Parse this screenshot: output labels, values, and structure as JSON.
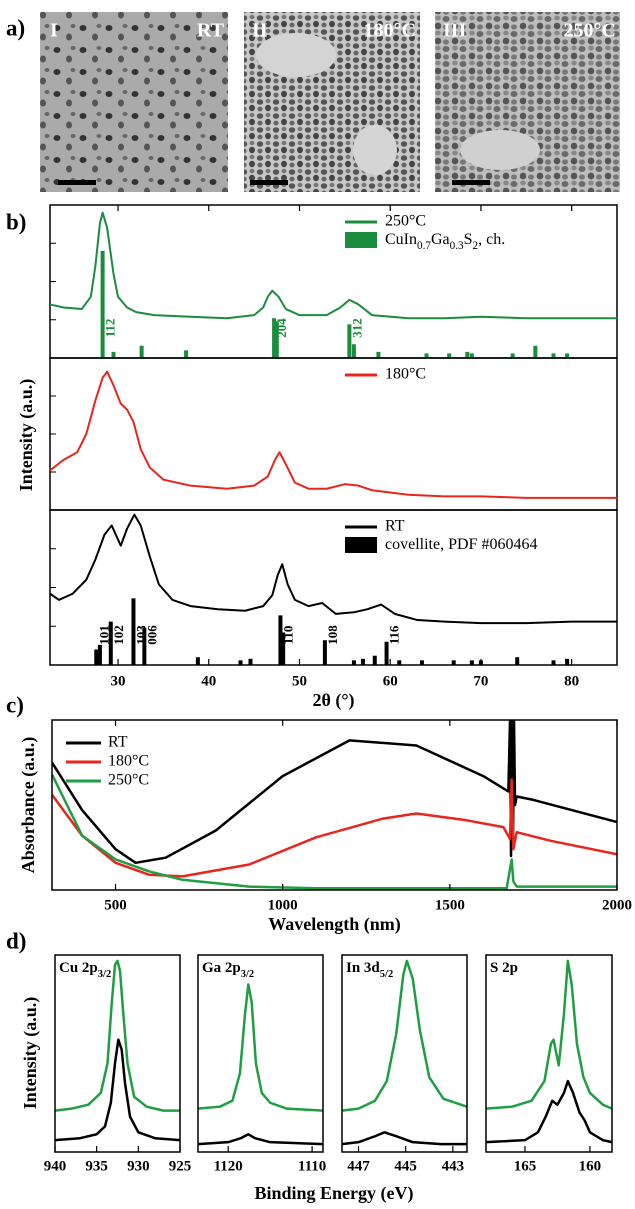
{
  "images": {
    "panel_label": "a)",
    "items": [
      {
        "label": "I",
        "condition": "RT"
      },
      {
        "label": "II",
        "condition": "180°C"
      },
      {
        "label": "III",
        "condition": "250°C"
      }
    ]
  },
  "chart_data": [
    {
      "type": "xrd",
      "panel_label": "b)",
      "xlabel": "2θ (°)",
      "ylabel": "Intensity (a.u.)",
      "xlim": [
        22.5,
        85
      ],
      "xticks": [
        30,
        40,
        50,
        60,
        70,
        80
      ],
      "subplots": [
        {
          "ylim": [
            0,
            100
          ],
          "series": [
            {
              "name": "250°C",
              "color": "#1b8c3e",
              "x": [
                22.5,
                24,
                26,
                27,
                27.5,
                28,
                28.3,
                28.8,
                29.5,
                30,
                31,
                32,
                34,
                38,
                42,
                45,
                46,
                46.5,
                47,
                47.7,
                48.5,
                50,
                53,
                54.5,
                55.5,
                56.5,
                58,
                62,
                66,
                70,
                75,
                80,
                85
              ],
              "values": [
                35,
                33,
                32,
                40,
                60,
                88,
                95,
                85,
                55,
                40,
                33,
                30,
                28,
                27,
                26,
                28,
                33,
                40,
                44,
                40,
                32,
                28,
                28,
                33,
                38,
                35,
                28,
                26,
                26,
                27,
                26,
                26,
                26
              ]
            }
          ],
          "sticks": {
            "name": [
              {
                "text": "CuIn"
              },
              {
                "text": "0.7",
                "sub": true
              },
              {
                "text": "Ga"
              },
              {
                "text": "0.3",
                "sub": true
              },
              {
                "text": "S"
              },
              {
                "text": "2",
                "sub": true
              },
              {
                "text": ", ch."
              }
            ],
            "color": "#1b8c3e",
            "x": [
              28.3,
              29.5,
              32.6,
              37.5,
              47.2,
              47.5,
              55.5,
              56,
              58.7,
              64,
              66.5,
              68.5,
              69,
              73.5,
              76,
              78,
              79.5
            ],
            "values": [
              70,
              4,
              8,
              5,
              26,
              24,
              22,
              9,
              4,
              3,
              3,
              4,
              3,
              3,
              8,
              3,
              3
            ],
            "labels": [
              "112",
              null,
              null,
              null,
              "204",
              null,
              "312",
              null,
              null,
              null,
              null,
              null,
              null,
              null,
              null,
              null,
              null
            ]
          }
        },
        {
          "ylim": [
            0,
            100
          ],
          "series": [
            {
              "name": "180°C",
              "color": "#e8251f",
              "x": [
                22.5,
                24,
                25.5,
                26.5,
                27.5,
                28.3,
                28.8,
                29.5,
                30.3,
                31,
                31.7,
                32.5,
                33.5,
                35,
                38,
                42,
                45,
                46.5,
                47.3,
                47.8,
                48.5,
                49.5,
                51,
                53,
                55,
                56.5,
                58,
                62,
                66,
                70,
                75,
                80,
                85
              ],
              "values": [
                26,
                33,
                38,
                50,
                72,
                87,
                91,
                82,
                70,
                66,
                58,
                40,
                28,
                20,
                16,
                14,
                16,
                22,
                33,
                38,
                30,
                18,
                14,
                14,
                17,
                16,
                13,
                10,
                9,
                9,
                8,
                8,
                8
              ]
            }
          ]
        },
        {
          "ylim": [
            0,
            100
          ],
          "series": [
            {
              "name": "RT",
              "color": "#000000",
              "x": [
                22.5,
                23.5,
                25,
                26.5,
                27.5,
                28.5,
                29.3,
                30.3,
                31,
                31.8,
                32.5,
                33.5,
                34.5,
                36,
                38,
                41,
                44,
                46,
                47,
                47.6,
                48.1,
                48.7,
                49.5,
                51,
                52.5,
                54,
                56,
                57.5,
                59,
                60.5,
                63,
                66,
                70,
                75,
                80,
                85
              ],
              "values": [
                46,
                42,
                46,
                55,
                68,
                84,
                90,
                77,
                88,
                97,
                90,
                70,
                52,
                42,
                38,
                36,
                35,
                38,
                45,
                58,
                65,
                52,
                42,
                38,
                40,
                33,
                34,
                36,
                39,
                33,
                29,
                28,
                27,
                27,
                28,
                28
              ]
            }
          ],
          "sticks": {
            "name": [
              {
                "text": "covellite, PDF #060464"
              }
            ],
            "color": "#000000",
            "x": [
              27.6,
              28,
              29.2,
              31.7,
              32.9,
              38.8,
              43.5,
              44.6,
              47.9,
              48.2,
              52.8,
              56,
              57,
              58.3,
              59.6,
              61,
              63.5,
              67,
              69,
              70,
              74,
              78,
              79.5
            ],
            "values": [
              10,
              13,
              28,
              43,
              24,
              5,
              3,
              4,
              32,
              21,
              16,
              3,
              4,
              6,
              15,
              3,
              3,
              3,
              3,
              3,
              5,
              3,
              4
            ],
            "labels": [
              "101",
              null,
              "102",
              "103",
              "006",
              null,
              null,
              null,
              "110",
              null,
              "108",
              null,
              null,
              null,
              "116",
              null,
              null,
              null,
              null,
              null,
              null,
              null,
              null
            ]
          }
        }
      ]
    },
    {
      "type": "line",
      "panel_label": "c)",
      "xlabel": "Wavelength (nm)",
      "ylabel": "Absorbance (a.u.)",
      "xlim": [
        310,
        2000
      ],
      "xticks": [
        500,
        1000,
        1500,
        2000
      ],
      "ylim": [
        0,
        100
      ],
      "legend": "upper left",
      "series": [
        {
          "name": "RT",
          "color": "#000000",
          "x": [
            310,
            400,
            500,
            560,
            650,
            800,
            1000,
            1200,
            1400,
            1600,
            1675,
            1680,
            1683,
            1686,
            1689,
            1692,
            1695,
            1700,
            1750,
            2000
          ],
          "values": [
            75,
            47,
            24,
            16,
            19,
            35,
            67,
            88,
            85,
            67,
            58,
            100,
            20,
            100,
            30,
            100,
            50,
            55,
            53,
            40
          ]
        },
        {
          "name": "180°C",
          "color": "#e8251f",
          "x": [
            310,
            400,
            500,
            600,
            700,
            900,
            1100,
            1300,
            1400,
            1550,
            1660,
            1680,
            1685,
            1690,
            1700,
            1800,
            2000
          ],
          "values": [
            56,
            32,
            16,
            9,
            8,
            15,
            31,
            42,
            45,
            41,
            37,
            30,
            65,
            24,
            34,
            29,
            21
          ]
        },
        {
          "name": "250°C",
          "color": "#1f9e44",
          "x": [
            310,
            400,
            500,
            600,
            700,
            900,
            1100,
            1500,
            1670,
            1685,
            1690,
            1700,
            2000
          ],
          "values": [
            68,
            32,
            18,
            11,
            6,
            2,
            1,
            1,
            1,
            18,
            5,
            2,
            2
          ]
        }
      ]
    },
    {
      "type": "xps",
      "panel_label": "d)",
      "xlabel": "Binding Energy (eV)",
      "ylabel": "Intensity (a.u.)",
      "subplots": [
        {
          "title": [
            {
              "text": "Cu 2p"
            },
            {
              "text": "3/2",
              "sub": true
            }
          ],
          "xlim": [
            940,
            925
          ],
          "xticks": [
            940,
            935,
            930,
            925
          ],
          "ylim": [
            0,
            100
          ],
          "series": [
            {
              "color": "#1f9e44",
              "x": [
                940,
                938,
                936,
                934.5,
                933.7,
                933.2,
                932.8,
                932.5,
                932.2,
                931.8,
                931.3,
                930.5,
                929,
                927,
                925
              ],
              "values": [
                21,
                22,
                24,
                30,
                45,
                75,
                95,
                97,
                92,
                70,
                45,
                28,
                23,
                21,
                21
              ]
            },
            {
              "color": "#000000",
              "x": [
                940,
                937,
                935,
                934,
                933.3,
                932.8,
                932.4,
                932,
                931.6,
                931,
                930,
                928,
                925
              ],
              "values": [
                6,
                7,
                9,
                13,
                25,
                45,
                57,
                52,
                35,
                18,
                10,
                7,
                6
              ]
            }
          ]
        },
        {
          "title": [
            {
              "text": "Ga 2p"
            },
            {
              "text": "3/2",
              "sub": true
            }
          ],
          "xlim": [
            1123.6,
            1108.7
          ],
          "xticks": [
            1120,
            1110
          ],
          "ylim": [
            0,
            100
          ],
          "series": [
            {
              "color": "#1f9e44",
              "x": [
                1123.6,
                1121,
                1119.5,
                1118.6,
                1118,
                1117.6,
                1117.2,
                1116.7,
                1116,
                1115,
                1113,
                1108.7
              ],
              "values": [
                22,
                23,
                26,
                40,
                70,
                85,
                76,
                45,
                30,
                25,
                22,
                21
              ]
            },
            {
              "color": "#000000",
              "x": [
                1123.6,
                1120,
                1118.5,
                1117.6,
                1116.8,
                1115,
                1108.7
              ],
              "values": [
                4,
                5,
                7,
                9,
                7,
                5,
                4
              ]
            }
          ]
        },
        {
          "title": [
            {
              "text": "In 3d"
            },
            {
              "text": "5/2",
              "sub": true
            }
          ],
          "xlim": [
            447.7,
            442.4
          ],
          "xticks": [
            447,
            445,
            443
          ],
          "ylim": [
            0,
            100
          ],
          "series": [
            {
              "color": "#1f9e44",
              "x": [
                447.7,
                447,
                446.3,
                445.8,
                445.4,
                445.1,
                444.95,
                444.7,
                444.4,
                444,
                443.4,
                442.4
              ],
              "values": [
                21,
                22,
                26,
                36,
                60,
                90,
                97,
                88,
                62,
                38,
                27,
                23
              ]
            },
            {
              "color": "#000000",
              "x": [
                447.7,
                447,
                446.3,
                445.9,
                445.4,
                444.7,
                443.5,
                442.4
              ],
              "values": [
                4,
                5,
                8,
                10,
                8,
                5,
                4,
                4
              ]
            }
          ]
        },
        {
          "title": [
            {
              "text": "S 2p"
            }
          ],
          "xlim": [
            168,
            158.3
          ],
          "xticks": [
            165,
            160
          ],
          "ylim": [
            0,
            100
          ],
          "series": [
            {
              "color": "#1f9e44",
              "x": [
                168,
                166,
                164.5,
                163.5,
                163,
                162.8,
                162.4,
                162,
                161.7,
                161.4,
                161,
                160.5,
                160,
                159,
                158.3
              ],
              "values": [
                22,
                23,
                26,
                36,
                55,
                57,
                44,
                70,
                97,
                85,
                55,
                38,
                30,
                24,
                22
              ]
            },
            {
              "color": "#000000",
              "x": [
                168,
                165,
                164,
                163.4,
                162.9,
                162.5,
                162,
                161.7,
                161.3,
                160.8,
                160.4,
                160,
                159,
                158.3
              ],
              "values": [
                5,
                6,
                10,
                18,
                26,
                24,
                30,
                36,
                30,
                20,
                16,
                10,
                6,
                5
              ]
            }
          ]
        }
      ]
    }
  ]
}
